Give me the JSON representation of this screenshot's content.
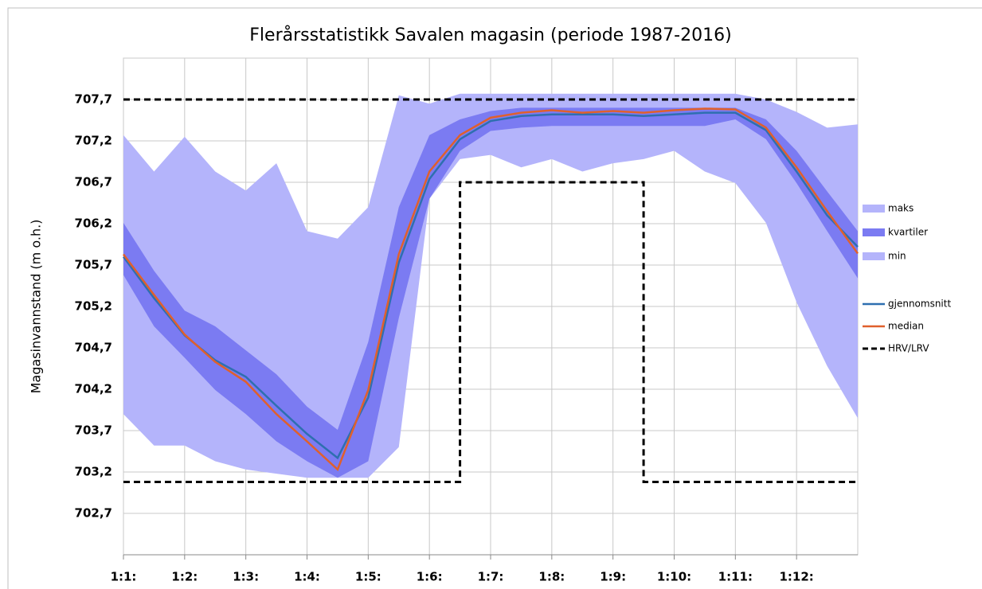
{
  "chart_data": {
    "type": "band-line",
    "title": "Flerårsstatistikk Savalen magasin (periode 1987-2016)",
    "y_label": "Magasinvannstand (m o.h.)",
    "x": [
      0,
      0.5,
      1,
      1.5,
      2,
      2.5,
      3,
      3.5,
      4,
      4.5,
      5,
      5.5,
      6,
      6.5,
      7,
      7.5,
      8,
      8.5,
      9,
      9.5,
      10,
      10.5,
      11,
      11.5,
      12
    ],
    "xlim": [
      0,
      12
    ],
    "xticks": [
      {
        "value": 0,
        "label": "1:1:"
      },
      {
        "value": 1,
        "label": "1:2:"
      },
      {
        "value": 2,
        "label": "1:3:"
      },
      {
        "value": 3,
        "label": "1:4:"
      },
      {
        "value": 4,
        "label": "1:5:"
      },
      {
        "value": 5,
        "label": "1:6:"
      },
      {
        "value": 6,
        "label": "1:7:"
      },
      {
        "value": 7,
        "label": "1:8:"
      },
      {
        "value": 8,
        "label": "1:9:"
      },
      {
        "value": 9,
        "label": "1:10:"
      },
      {
        "value": 10,
        "label": "1:11:"
      },
      {
        "value": 11,
        "label": "1:12:"
      }
    ],
    "ylim": [
      702.2,
      708.2
    ],
    "yticks": [
      {
        "value": 702.7,
        "label": "702,7"
      },
      {
        "value": 703.2,
        "label": "703,2"
      },
      {
        "value": 703.7,
        "label": "703,7"
      },
      {
        "value": 704.2,
        "label": "704,2"
      },
      {
        "value": 704.7,
        "label": "704,7"
      },
      {
        "value": 705.2,
        "label": "705,2"
      },
      {
        "value": 705.7,
        "label": "705,7"
      },
      {
        "value": 706.2,
        "label": "706,2"
      },
      {
        "value": 706.7,
        "label": "706,7"
      },
      {
        "value": 707.2,
        "label": "707,2"
      },
      {
        "value": 707.7,
        "label": "707,7"
      }
    ],
    "grid": true,
    "legend": "right",
    "bands": [
      {
        "name": "maks",
        "color": "#b4b4fb",
        "values": [
          707.27,
          706.83,
          707.25,
          706.83,
          706.6,
          706.93,
          706.11,
          706.02,
          706.4,
          707.75,
          707.65,
          707.77,
          707.77,
          707.77,
          707.77,
          707.77,
          707.77,
          707.77,
          707.77,
          707.77,
          707.77,
          707.7,
          707.55,
          707.36,
          707.4
        ]
      },
      {
        "name": "kvartiler",
        "color": "#7b7bf2",
        "upper": [
          706.21,
          705.63,
          705.15,
          704.96,
          704.67,
          704.38,
          703.99,
          703.71,
          704.77,
          706.4,
          707.27,
          707.46,
          707.56,
          707.6,
          707.6,
          707.6,
          707.6,
          707.6,
          707.6,
          707.6,
          707.6,
          707.46,
          707.08,
          706.59,
          706.11
        ],
        "lower": [
          705.58,
          704.96,
          704.58,
          704.19,
          703.9,
          703.57,
          703.33,
          703.13,
          703.33,
          705.06,
          706.5,
          707.08,
          707.32,
          707.36,
          707.38,
          707.38,
          707.38,
          707.38,
          707.38,
          707.38,
          707.46,
          707.22,
          706.69,
          706.11,
          705.54
        ]
      },
      {
        "name": "min",
        "color": "#b4b4fb",
        "values": [
          703.9,
          703.52,
          703.52,
          703.33,
          703.23,
          703.18,
          703.13,
          703.13,
          703.13,
          703.5,
          706.5,
          706.98,
          707.03,
          706.88,
          706.98,
          706.83,
          706.93,
          706.98,
          707.08,
          706.83,
          706.69,
          706.21,
          705.25,
          704.48,
          703.85
        ]
      }
    ],
    "series": [
      {
        "name": "gjennomsnitt",
        "color": "#2e6fb0",
        "values": [
          705.8,
          705.3,
          704.85,
          704.55,
          704.35,
          704.0,
          703.66,
          703.37,
          704.1,
          705.73,
          706.74,
          707.22,
          707.44,
          707.5,
          707.52,
          707.52,
          707.52,
          707.5,
          707.52,
          707.54,
          707.54,
          707.33,
          706.83,
          706.3,
          705.92
        ]
      },
      {
        "name": "median",
        "color": "#e0602c",
        "values": [
          705.83,
          705.34,
          704.86,
          704.53,
          704.29,
          703.9,
          703.57,
          703.23,
          704.19,
          705.83,
          706.83,
          707.27,
          707.48,
          707.54,
          707.57,
          707.54,
          707.56,
          707.54,
          707.57,
          707.59,
          707.58,
          707.36,
          706.88,
          706.35,
          705.84
        ]
      }
    ],
    "limits": {
      "name": "HRV/LRV",
      "color": "#000000",
      "hrv_x": [
        0,
        12
      ],
      "hrv": [
        707.7,
        707.7
      ],
      "lrv_x": [
        0,
        5.5,
        5.5,
        8.5,
        8.5,
        12
      ],
      "lrv": [
        703.08,
        703.08,
        706.7,
        706.7,
        703.08,
        703.08
      ]
    }
  }
}
